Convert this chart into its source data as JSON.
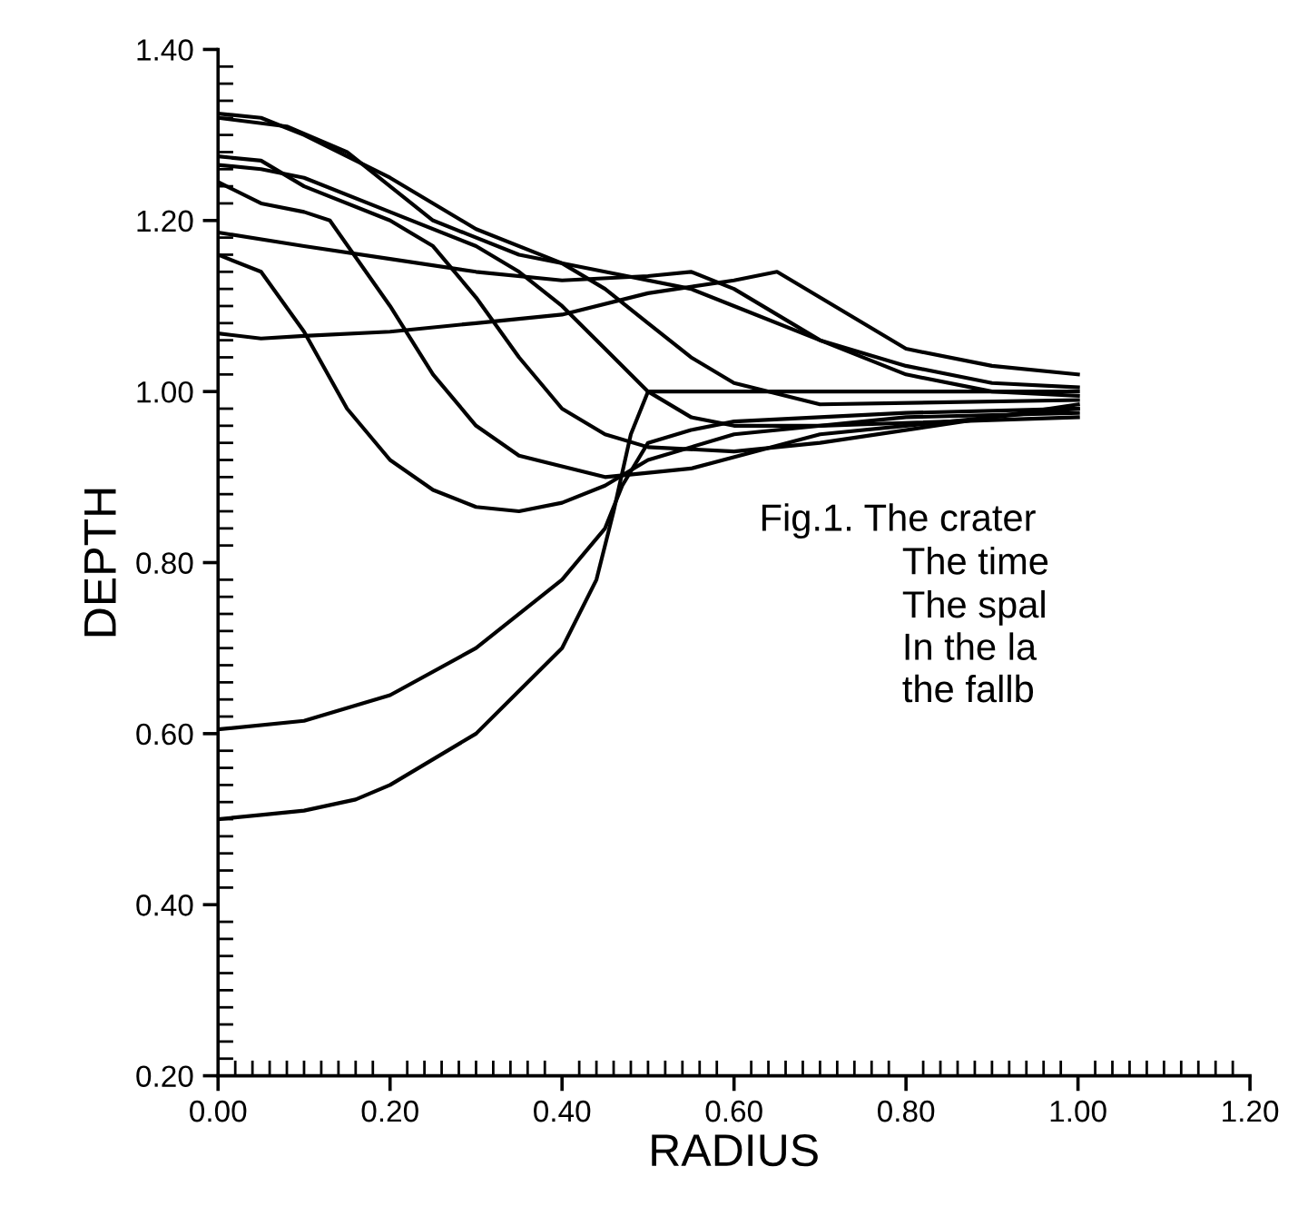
{
  "chart_data": {
    "type": "line",
    "xlabel": "RADIUS",
    "ylabel": "DEPTH",
    "xlim": [
      0,
      1.2
    ],
    "ylim": [
      0.2,
      1.4
    ],
    "xticks": [
      {
        "value": 0,
        "label": "0.00"
      },
      {
        "value": 0.02,
        "label": null
      },
      {
        "value": 0.04,
        "label": null
      },
      {
        "value": 0.06,
        "label": null
      },
      {
        "value": 0.08,
        "label": null
      },
      {
        "value": 0.1,
        "label": null
      },
      {
        "value": 0.12,
        "label": null
      },
      {
        "value": 0.14,
        "label": null
      },
      {
        "value": 0.16,
        "label": null
      },
      {
        "value": 0.18,
        "label": null
      },
      {
        "value": 0.2,
        "label": "0.20"
      },
      {
        "value": 0.22,
        "label": null
      },
      {
        "value": 0.24,
        "label": null
      },
      {
        "value": 0.26,
        "label": null
      },
      {
        "value": 0.28,
        "label": null
      },
      {
        "value": 0.3,
        "label": null
      },
      {
        "value": 0.32,
        "label": null
      },
      {
        "value": 0.34,
        "label": null
      },
      {
        "value": 0.36,
        "label": null
      },
      {
        "value": 0.38,
        "label": null
      },
      {
        "value": 0.4,
        "label": "0.40"
      },
      {
        "value": 0.42,
        "label": null
      },
      {
        "value": 0.44,
        "label": null
      },
      {
        "value": 0.46,
        "label": null
      },
      {
        "value": 0.48,
        "label": null
      },
      {
        "value": 0.5,
        "label": null
      },
      {
        "value": 0.52,
        "label": null
      },
      {
        "value": 0.54,
        "label": null
      },
      {
        "value": 0.56,
        "label": null
      },
      {
        "value": 0.58,
        "label": null
      },
      {
        "value": 0.6,
        "label": "0.60"
      },
      {
        "value": 0.62,
        "label": null
      },
      {
        "value": 0.64,
        "label": null
      },
      {
        "value": 0.66,
        "label": null
      },
      {
        "value": 0.68,
        "label": null
      },
      {
        "value": 0.7,
        "label": null
      },
      {
        "value": 0.72,
        "label": null
      },
      {
        "value": 0.74,
        "label": null
      },
      {
        "value": 0.76,
        "label": null
      },
      {
        "value": 0.78,
        "label": null
      },
      {
        "value": 0.8,
        "label": "0.80"
      },
      {
        "value": 0.82,
        "label": null
      },
      {
        "value": 0.84,
        "label": null
      },
      {
        "value": 0.86,
        "label": null
      },
      {
        "value": 0.88,
        "label": null
      },
      {
        "value": 0.9,
        "label": null
      },
      {
        "value": 0.92,
        "label": null
      },
      {
        "value": 0.94,
        "label": null
      },
      {
        "value": 0.96,
        "label": null
      },
      {
        "value": 0.98,
        "label": null
      },
      {
        "value": 1.0,
        "label": "1.00"
      },
      {
        "value": 1.02,
        "label": null
      },
      {
        "value": 1.04,
        "label": null
      },
      {
        "value": 1.06,
        "label": null
      },
      {
        "value": 1.08,
        "label": null
      },
      {
        "value": 1.1,
        "label": null
      },
      {
        "value": 1.12,
        "label": null
      },
      {
        "value": 1.14,
        "label": null
      },
      {
        "value": 1.16,
        "label": null
      },
      {
        "value": 1.18,
        "label": null
      },
      {
        "value": 1.2,
        "label": "1.20"
      }
    ],
    "yticks": [
      {
        "value": 0.2,
        "label": "0.20"
      },
      {
        "value": 0.22,
        "label": null
      },
      {
        "value": 0.24,
        "label": null
      },
      {
        "value": 0.26,
        "label": null
      },
      {
        "value": 0.28,
        "label": null
      },
      {
        "value": 0.3,
        "label": null
      },
      {
        "value": 0.32,
        "label": null
      },
      {
        "value": 0.34,
        "label": null
      },
      {
        "value": 0.36,
        "label": null
      },
      {
        "value": 0.38,
        "label": null
      },
      {
        "value": 0.4,
        "label": "0.40"
      },
      {
        "value": 0.42,
        "label": null
      },
      {
        "value": 0.44,
        "label": null
      },
      {
        "value": 0.46,
        "label": null
      },
      {
        "value": 0.48,
        "label": null
      },
      {
        "value": 0.5,
        "label": null
      },
      {
        "value": 0.52,
        "label": null
      },
      {
        "value": 0.54,
        "label": null
      },
      {
        "value": 0.56,
        "label": null
      },
      {
        "value": 0.58,
        "label": null
      },
      {
        "value": 0.6,
        "label": "0.60"
      },
      {
        "value": 0.62,
        "label": null
      },
      {
        "value": 0.64,
        "label": null
      },
      {
        "value": 0.66,
        "label": null
      },
      {
        "value": 0.68,
        "label": null
      },
      {
        "value": 0.7,
        "label": null
      },
      {
        "value": 0.72,
        "label": null
      },
      {
        "value": 0.74,
        "label": null
      },
      {
        "value": 0.76,
        "label": null
      },
      {
        "value": 0.78,
        "label": null
      },
      {
        "value": 0.8,
        "label": "0.80"
      },
      {
        "value": 0.82,
        "label": null
      },
      {
        "value": 0.84,
        "label": null
      },
      {
        "value": 0.86,
        "label": null
      },
      {
        "value": 0.88,
        "label": null
      },
      {
        "value": 0.9,
        "label": null
      },
      {
        "value": 0.92,
        "label": null
      },
      {
        "value": 0.94,
        "label": null
      },
      {
        "value": 0.96,
        "label": null
      },
      {
        "value": 0.98,
        "label": null
      },
      {
        "value": 1.0,
        "label": "1.00"
      },
      {
        "value": 1.02,
        "label": null
      },
      {
        "value": 1.04,
        "label": null
      },
      {
        "value": 1.06,
        "label": null
      },
      {
        "value": 1.08,
        "label": null
      },
      {
        "value": 1.1,
        "label": null
      },
      {
        "value": 1.12,
        "label": null
      },
      {
        "value": 1.14,
        "label": null
      },
      {
        "value": 1.16,
        "label": null
      },
      {
        "value": 1.18,
        "label": null
      },
      {
        "value": 1.2,
        "label": "1.20"
      },
      {
        "value": 1.22,
        "label": null
      },
      {
        "value": 1.24,
        "label": null
      },
      {
        "value": 1.26,
        "label": null
      },
      {
        "value": 1.28,
        "label": null
      },
      {
        "value": 1.3,
        "label": null
      },
      {
        "value": 1.32,
        "label": null
      },
      {
        "value": 1.34,
        "label": null
      },
      {
        "value": 1.36,
        "label": null
      },
      {
        "value": 1.38,
        "label": null
      },
      {
        "value": 1.4,
        "label": "1.40"
      }
    ],
    "marker": "none",
    "line_style": "solid",
    "series": [
      {
        "color": "#000000",
        "x": [
          0,
          0.05,
          0.1,
          0.15,
          0.2,
          0.25,
          0.3,
          0.35,
          0.4,
          0.45,
          0.5,
          0.6,
          0.8,
          1.0
        ],
        "values": [
          1.16,
          1.14,
          1.07,
          0.98,
          0.92,
          0.885,
          0.865,
          0.86,
          0.87,
          0.89,
          0.92,
          0.95,
          0.97,
          0.975
        ]
      },
      {
        "color": "#000000",
        "x": [
          0,
          0.05,
          0.1,
          0.13,
          0.2,
          0.25,
          0.3,
          0.35,
          0.45,
          0.55,
          0.7,
          1.0
        ],
        "values": [
          1.245,
          1.22,
          1.21,
          1.2,
          1.1,
          1.02,
          0.96,
          0.925,
          0.9,
          0.91,
          0.95,
          0.98
        ]
      },
      {
        "color": "#000000",
        "x": [
          0,
          0.05,
          0.1,
          0.2,
          0.25,
          0.3,
          0.35,
          0.4,
          0.45,
          0.5,
          0.6,
          0.7,
          1.0
        ],
        "values": [
          1.275,
          1.27,
          1.24,
          1.2,
          1.17,
          1.11,
          1.04,
          0.98,
          0.95,
          0.935,
          0.93,
          0.94,
          0.985
        ]
      },
      {
        "color": "#000000",
        "x": [
          0,
          0.05,
          0.1,
          0.2,
          0.3,
          0.35,
          0.4,
          0.45,
          0.5,
          0.55,
          0.6,
          0.7,
          1.0
        ],
        "values": [
          1.265,
          1.26,
          1.25,
          1.21,
          1.17,
          1.14,
          1.1,
          1.05,
          1.0,
          0.97,
          0.96,
          0.96,
          0.97
        ]
      },
      {
        "color": "#000000",
        "x": [
          0,
          0.05,
          0.1,
          0.2,
          0.3,
          0.4,
          0.45,
          0.5,
          0.55,
          0.6,
          0.7,
          1.0
        ],
        "values": [
          1.325,
          1.32,
          1.3,
          1.25,
          1.19,
          1.15,
          1.12,
          1.08,
          1.04,
          1.01,
          0.985,
          0.99
        ]
      },
      {
        "color": "#000000",
        "x": [
          0,
          0.08,
          0.15,
          0.25,
          0.35,
          0.45,
          0.55,
          0.6,
          0.7,
          0.8,
          0.9,
          1.0
        ],
        "values": [
          1.32,
          1.31,
          1.28,
          1.2,
          1.16,
          1.14,
          1.12,
          1.1,
          1.06,
          1.03,
          1.01,
          1.005
        ]
      },
      {
        "color": "#000000",
        "x": [
          0,
          0.1,
          0.2,
          0.3,
          0.4,
          0.5,
          0.55,
          0.6,
          0.7,
          0.8,
          0.9,
          1.0
        ],
        "values": [
          1.186,
          1.17,
          1.155,
          1.14,
          1.13,
          1.135,
          1.14,
          1.12,
          1.06,
          1.02,
          1.0,
          0.995
        ]
      },
      {
        "color": "#000000",
        "x": [
          0,
          0.05,
          0.1,
          0.2,
          0.3,
          0.4,
          0.5,
          0.6,
          0.65,
          0.7,
          0.8,
          0.9,
          1.0
        ],
        "values": [
          1.068,
          1.062,
          1.065,
          1.07,
          1.08,
          1.09,
          1.115,
          1.13,
          1.14,
          1.11,
          1.05,
          1.03,
          1.02
        ]
      },
      {
        "color": "#000000",
        "x": [
          0,
          0.1,
          0.2,
          0.3,
          0.4,
          0.45,
          0.47,
          0.5,
          0.55,
          0.6,
          0.8,
          1.0
        ],
        "values": [
          0.605,
          0.615,
          0.645,
          0.7,
          0.78,
          0.84,
          0.89,
          0.94,
          0.955,
          0.965,
          0.975,
          0.98
        ]
      },
      {
        "color": "#000000",
        "x": [
          0,
          0.05,
          0.1,
          0.16,
          0.2,
          0.3,
          0.4,
          0.44,
          0.46,
          0.48,
          0.5,
          0.6,
          0.8,
          1.0
        ],
        "values": [
          0.5,
          0.505,
          0.51,
          0.523,
          0.54,
          0.6,
          0.7,
          0.78,
          0.86,
          0.95,
          1.0,
          1.0,
          1.0,
          1.0
        ]
      }
    ],
    "annotations": [
      "Fig.1. The crater",
      "The time",
      "The spal",
      "In the la",
      "the fallb"
    ]
  }
}
